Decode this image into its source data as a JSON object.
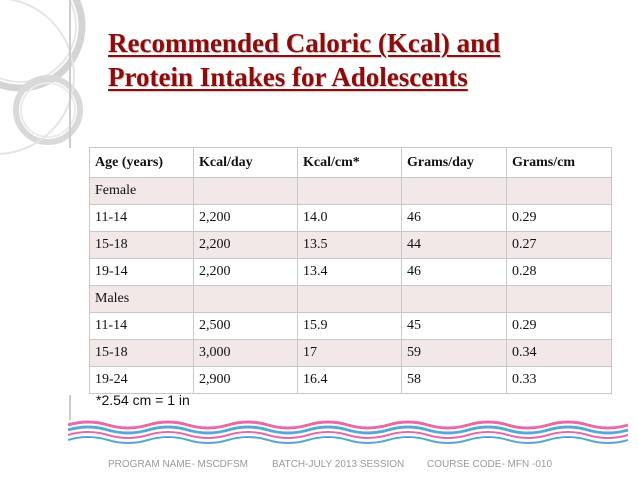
{
  "slide": {
    "title_line1": "Recommended Caloric (Kcal) and",
    "title_line2": "Protein Intakes for Adolescents",
    "accent_color": "#8e0b0b"
  },
  "table": {
    "headers": [
      "Age (years)",
      "Kcal/day",
      "Kcal/cm*",
      "Grams/day",
      "Grams/cm"
    ],
    "rows": [
      [
        "Female",
        "",
        "",
        "",
        ""
      ],
      [
        "11-14",
        "2,200",
        "14.0",
        "46",
        "0.29"
      ],
      [
        "15-18",
        "2,200",
        "13.5",
        "44",
        "0.27"
      ],
      [
        "19-14",
        "2,200",
        "13.4",
        "46",
        "0.28"
      ],
      [
        "Males",
        "",
        "",
        "",
        ""
      ],
      [
        "11-14",
        "2,500",
        "15.9",
        "45",
        "0.29"
      ],
      [
        "15-18",
        "3,000",
        "17",
        "59",
        "0.34"
      ],
      [
        "19-24",
        "2,900",
        "16.4",
        "58",
        "0.33"
      ]
    ]
  },
  "footnote": "*2.54 cm = 1 in",
  "footer": {
    "program": "PROGRAM NAME- MSCDFSM",
    "batch": "BATCH-JULY 2013 SESSION",
    "course": "COURSE CODE- MFN -010"
  }
}
